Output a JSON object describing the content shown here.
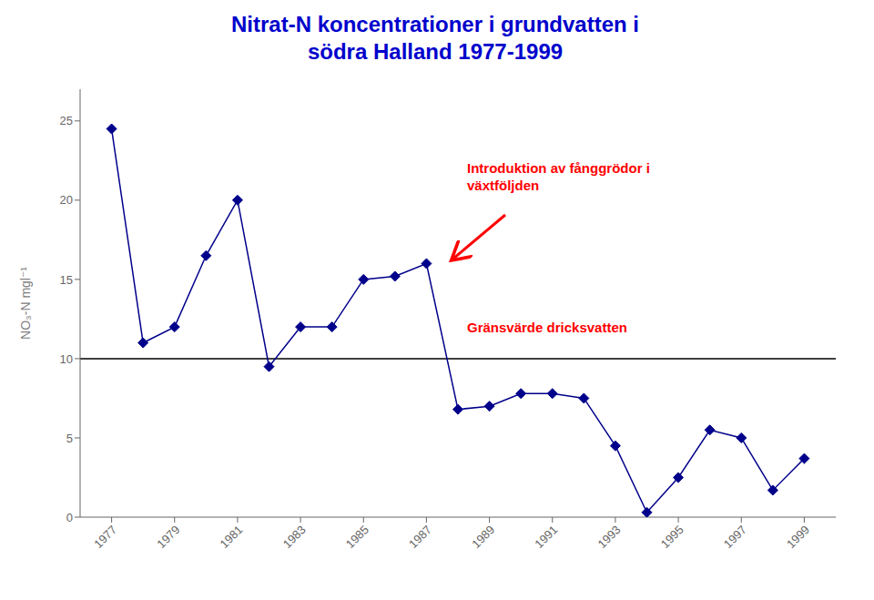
{
  "chart_data": {
    "type": "line",
    "title": "Nitrat-N koncentrationer i grundvatten i\nsödra Halland 1977-1999",
    "title_color": "#0000CC",
    "ylabel": "NO₃-N mgl⁻¹",
    "x": [
      1977,
      1978,
      1979,
      1980,
      1981,
      1982,
      1983,
      1984,
      1985,
      1986,
      1987,
      1988,
      1989,
      1990,
      1991,
      1992,
      1993,
      1994,
      1995,
      1996,
      1997,
      1998,
      1999
    ],
    "values": [
      24.5,
      11.0,
      12.0,
      16.5,
      20.0,
      9.5,
      12.0,
      12.0,
      15.0,
      15.2,
      16.0,
      6.8,
      7.0,
      7.8,
      7.8,
      7.5,
      4.5,
      0.3,
      2.5,
      5.5,
      5.0,
      1.7,
      3.7
    ],
    "color": "#00008B",
    "marker": "diamond",
    "xlim": [
      1976,
      2000
    ],
    "xticks": [
      1977,
      1979,
      1981,
      1983,
      1985,
      1987,
      1989,
      1991,
      1993,
      1995,
      1997,
      1999
    ],
    "ylim": [
      0,
      27
    ],
    "yticks": [
      0,
      5,
      10,
      15,
      20,
      25
    ],
    "grid": false,
    "reference_line": {
      "y": 10,
      "color": "black"
    },
    "annotations": [
      {
        "text": "Introduktion av fånggrödor i\nväxtföljden",
        "color": "red"
      },
      {
        "text": "Gränsvärde dricksvatten",
        "color": "red"
      }
    ]
  }
}
